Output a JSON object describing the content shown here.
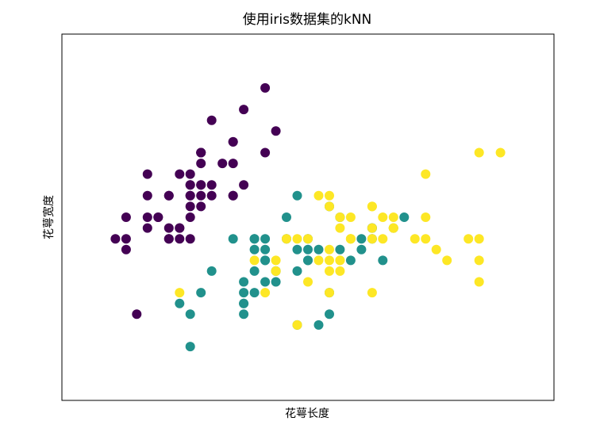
{
  "chart_data": {
    "type": "scatter",
    "title": "使用iris数据集的kNN",
    "xlabel": "花萼长度",
    "ylabel": "花萼宽度",
    "xlim": [
      3.8,
      8.4
    ],
    "ylim": [
      1.5,
      4.9
    ],
    "xticks": [],
    "yticks": [],
    "grid": false,
    "colors": {
      "setosa": "#440154",
      "versicolor": "#21918c",
      "virginica": "#fde725"
    },
    "series": [
      {
        "key": "setosa",
        "x": [
          5.1,
          4.9,
          4.7,
          4.6,
          5.0,
          5.4,
          4.6,
          5.0,
          4.4,
          4.9,
          5.4,
          4.8,
          4.8,
          4.3,
          5.8,
          5.7,
          5.4,
          5.1,
          5.7,
          5.1,
          5.4,
          5.1,
          4.6,
          5.1,
          4.8,
          5.0,
          5.0,
          5.2,
          5.2,
          4.7,
          4.8,
          5.4,
          5.2,
          5.5,
          4.9,
          5.0,
          5.5,
          4.9,
          4.4,
          5.1,
          5.0,
          4.5,
          4.4,
          5.0,
          5.1,
          4.8,
          5.1,
          4.6,
          5.3,
          5.0
        ],
        "y": [
          3.5,
          3.0,
          3.2,
          3.1,
          3.6,
          3.9,
          3.4,
          3.4,
          2.9,
          3.1,
          3.7,
          3.4,
          3.0,
          3.0,
          4.0,
          4.4,
          3.9,
          3.5,
          3.8,
          3.8,
          3.4,
          3.7,
          3.6,
          3.3,
          3.4,
          3.0,
          3.4,
          3.5,
          3.4,
          3.2,
          3.1,
          3.4,
          4.1,
          4.2,
          3.1,
          3.2,
          3.5,
          3.6,
          3.0,
          3.4,
          3.5,
          2.3,
          3.2,
          3.5,
          3.8,
          3.0,
          3.8,
          3.2,
          3.7,
          3.3
        ]
      },
      {
        "key": "versicolor",
        "x": [
          7.0,
          6.4,
          6.9,
          5.5,
          6.5,
          5.7,
          6.3,
          4.9,
          6.6,
          5.2,
          5.0,
          5.9,
          6.0,
          6.1,
          5.6,
          6.7,
          5.6,
          5.8,
          6.2,
          5.6,
          5.9,
          6.1,
          6.3,
          6.1,
          6.4,
          6.6,
          6.8,
          6.7,
          6.0,
          5.7,
          5.5,
          5.5,
          5.8,
          6.0,
          5.4,
          6.0,
          6.7,
          6.3,
          5.6,
          5.5,
          5.5,
          6.1,
          5.8,
          5.0,
          5.6,
          5.7,
          5.7,
          6.2,
          5.1,
          5.7
        ],
        "y": [
          3.2,
          3.2,
          3.1,
          2.3,
          2.8,
          2.8,
          3.3,
          2.4,
          2.9,
          2.7,
          2.0,
          3.0,
          2.2,
          2.9,
          2.9,
          3.1,
          3.0,
          2.7,
          2.2,
          2.5,
          3.2,
          2.8,
          2.5,
          2.8,
          2.9,
          3.0,
          2.8,
          3.0,
          2.9,
          2.6,
          2.4,
          2.4,
          2.7,
          2.7,
          3.0,
          3.4,
          3.1,
          2.3,
          3.0,
          2.5,
          2.6,
          3.0,
          2.6,
          2.3,
          2.7,
          3.0,
          2.9,
          2.9,
          2.5,
          2.8
        ]
      },
      {
        "key": "virginica",
        "x": [
          6.3,
          5.8,
          7.1,
          6.3,
          6.5,
          7.6,
          4.9,
          7.3,
          6.7,
          7.2,
          6.5,
          6.4,
          6.8,
          5.7,
          5.8,
          6.4,
          6.5,
          7.7,
          7.7,
          6.0,
          6.9,
          5.6,
          7.7,
          6.3,
          6.7,
          7.2,
          6.2,
          6.1,
          6.4,
          7.2,
          7.4,
          7.9,
          6.4,
          6.3,
          6.1,
          7.7,
          6.3,
          6.4,
          6.0,
          6.9,
          6.7,
          6.9,
          5.8,
          6.8,
          6.7,
          6.7,
          6.3,
          6.5,
          6.2,
          5.9
        ],
        "y": [
          3.3,
          2.7,
          3.0,
          2.9,
          3.0,
          3.0,
          2.5,
          2.9,
          2.5,
          3.6,
          3.2,
          2.7,
          3.0,
          2.5,
          2.8,
          3.2,
          3.0,
          3.8,
          2.6,
          2.2,
          3.2,
          2.8,
          2.8,
          2.7,
          3.3,
          3.2,
          2.8,
          3.0,
          2.8,
          3.0,
          2.8,
          3.8,
          2.8,
          2.8,
          2.6,
          3.0,
          3.4,
          3.1,
          3.0,
          3.1,
          3.1,
          3.1,
          2.7,
          3.2,
          3.3,
          3.0,
          2.5,
          3.0,
          3.4,
          3.0
        ]
      }
    ]
  }
}
